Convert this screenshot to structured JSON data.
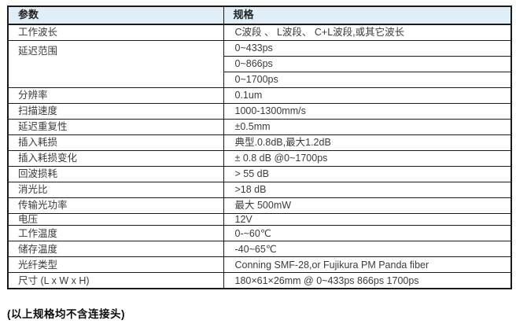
{
  "colors": {
    "header_bg": "#dfeef7",
    "border": "#1a1a1a",
    "text": "#3b3b3b"
  },
  "table": {
    "headers": [
      "参数",
      "规格"
    ],
    "rows": [
      {
        "param": "工作波长",
        "spec": "C波段 、 L波段、 C+L波段,或其它波长"
      },
      {
        "param": "延迟范围",
        "specs": [
          "0~433ps",
          "0~866ps",
          "0~1700ps"
        ]
      },
      {
        "param": "分辨率",
        "spec": "0.1um"
      },
      {
        "param": "扫描速度",
        "spec": "1000-1300mm/s"
      },
      {
        "param": "延迟重复性",
        "spec": "±0.5mm"
      },
      {
        "param": "插入耗损",
        "spec": "典型.0.8dB,最大1.2dB"
      },
      {
        "param": "插入耗损变化",
        "spec": "± 0.8 dB @0~1700ps"
      },
      {
        "param": "回波损耗",
        "spec": "> 55 dB"
      },
      {
        "param": "消光比",
        "spec": ">18 dB"
      },
      {
        "param": "传输光功率",
        "spec": "最大  500mW"
      },
      {
        "param": "电压",
        "spec": "12V"
      },
      {
        "param": "工作温度",
        "spec": "0-~60℃"
      },
      {
        "param": "储存温度",
        "spec": "-40~65℃"
      },
      {
        "param": "光纤类型",
        "spec": "Conning SMF-28,or Fujikura PM Panda fiber"
      },
      {
        "param": "尺寸 (L x W x H)",
        "spec": "180×61×26mm @ 0~433ps 866ps 1700ps"
      }
    ]
  },
  "footer_note": "(以上规格均不含连接头)"
}
